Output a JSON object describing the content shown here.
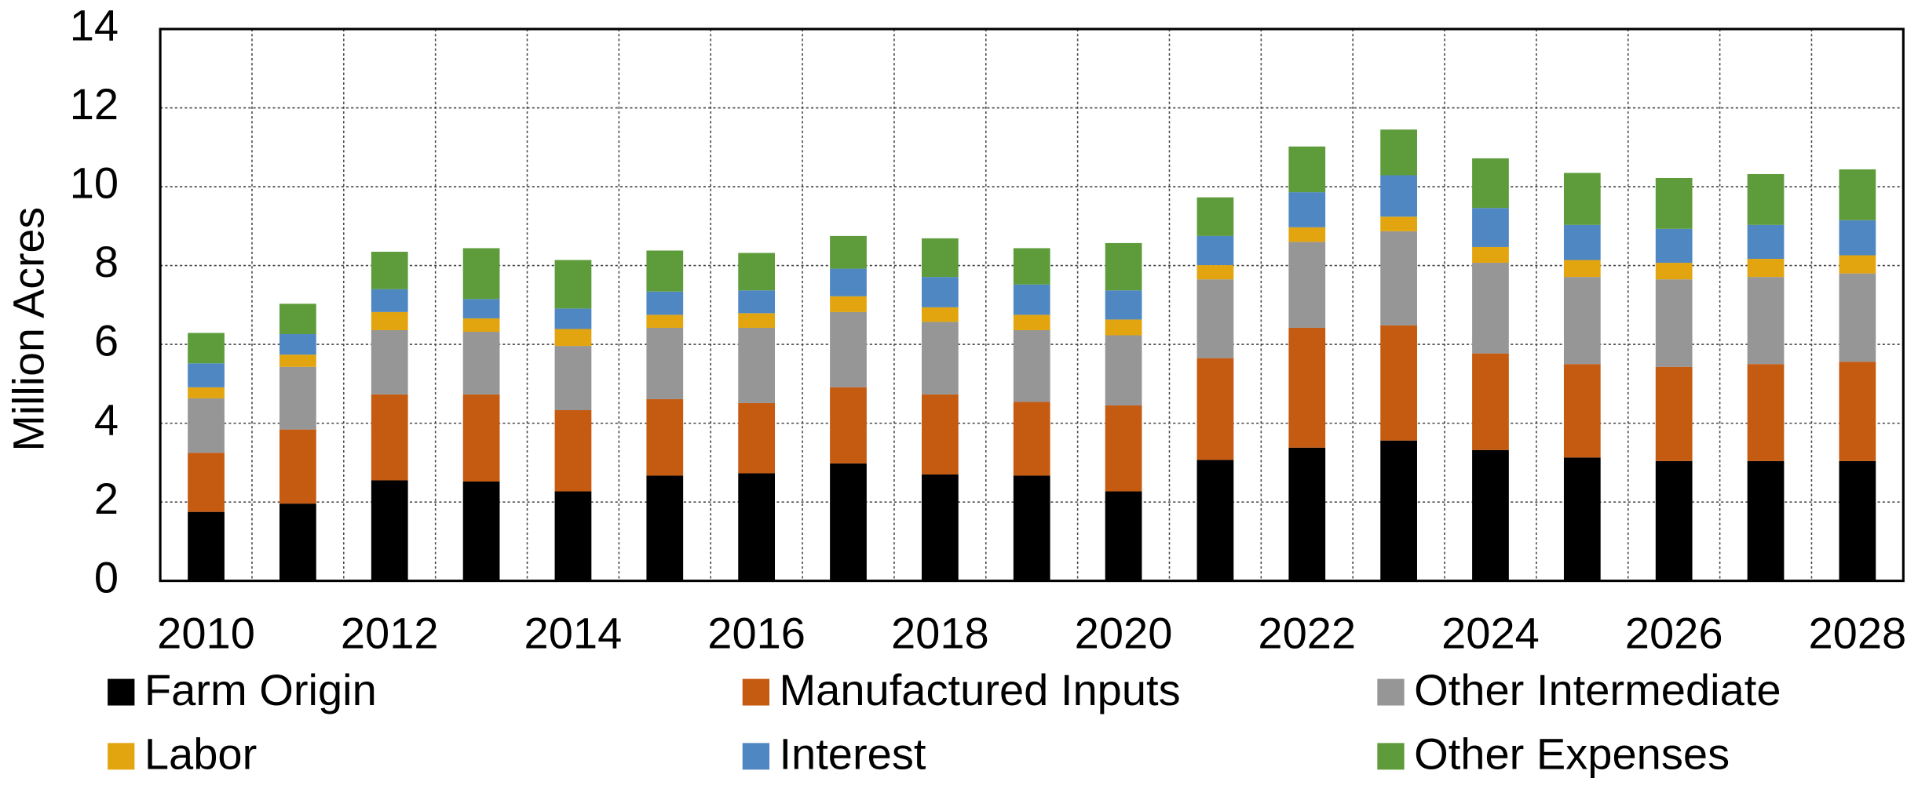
{
  "chart_data": {
    "type": "stacked_bar",
    "y_label": "Million Acres",
    "categories": [
      "2010",
      null,
      "2012",
      null,
      "2014",
      null,
      "2016",
      null,
      "2018",
      null,
      "2020",
      null,
      "2022",
      null,
      "2024",
      null,
      "2026",
      null,
      "2028"
    ],
    "series": [
      {
        "name": "Farm Origin",
        "color": "#000000",
        "values": [
          1.75,
          1.96,
          2.55,
          2.52,
          2.27,
          2.67,
          2.73,
          2.98,
          2.7,
          2.67,
          2.27,
          3.07,
          3.38,
          3.56,
          3.32,
          3.13,
          3.04,
          3.04,
          3.04
        ]
      },
      {
        "name": "Manufactured Inputs",
        "color": "#c55a11",
        "values": [
          1.5,
          1.88,
          2.18,
          2.21,
          2.06,
          1.94,
          1.78,
          1.93,
          2.03,
          1.87,
          2.18,
          2.58,
          3.04,
          2.92,
          2.45,
          2.37,
          2.39,
          2.46,
          2.52
        ]
      },
      {
        "name": "Other Intermediate",
        "color": "#969696",
        "values": [
          1.38,
          1.59,
          1.63,
          1.59,
          1.63,
          1.81,
          1.91,
          1.91,
          1.84,
          1.82,
          1.78,
          2.0,
          2.18,
          2.39,
          2.3,
          2.21,
          2.22,
          2.21,
          2.24
        ]
      },
      {
        "name": "Labor",
        "color": "#e2a50f",
        "values": [
          0.28,
          0.31,
          0.46,
          0.34,
          0.43,
          0.33,
          0.37,
          0.4,
          0.37,
          0.39,
          0.4,
          0.36,
          0.37,
          0.37,
          0.4,
          0.43,
          0.42,
          0.46,
          0.46
        ]
      },
      {
        "name": "Interest",
        "color": "#4f87c3",
        "values": [
          0.61,
          0.52,
          0.58,
          0.49,
          0.52,
          0.59,
          0.58,
          0.7,
          0.77,
          0.77,
          0.74,
          0.74,
          0.89,
          1.05,
          0.99,
          0.89,
          0.86,
          0.86,
          0.89
        ]
      },
      {
        "name": "Other Expenses",
        "color": "#5e9c3b",
        "values": [
          0.77,
          0.77,
          0.95,
          1.29,
          1.23,
          1.04,
          0.95,
          0.83,
          0.98,
          0.92,
          1.2,
          0.98,
          1.16,
          1.16,
          1.26,
          1.32,
          1.29,
          1.29,
          1.29
        ]
      }
    ],
    "ylim": [
      0,
      14
    ],
    "yticks": [
      0,
      2,
      4,
      6,
      8,
      10,
      12,
      14
    ],
    "grid": true
  }
}
